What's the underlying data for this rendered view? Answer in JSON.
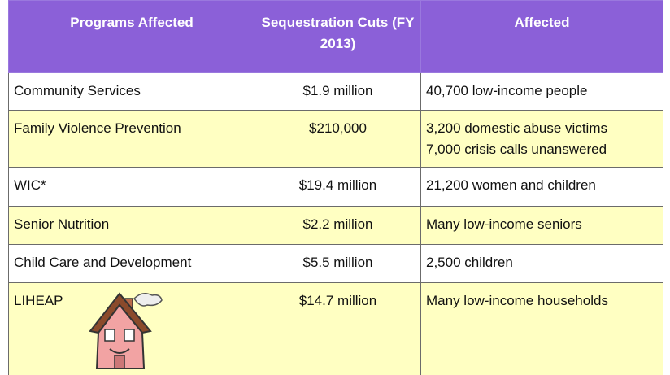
{
  "table": {
    "header": [
      "Programs Affected",
      "Sequestration Cuts (FY 2013)",
      "Affected"
    ],
    "rows": [
      [
        "Community Services",
        "$1.9 million",
        [
          "40,700 low-income people"
        ]
      ],
      [
        "Family Violence Prevention",
        "$210,000",
        [
          "3,200 domestic abuse victims",
          "7,000 crisis calls unanswered"
        ]
      ],
      [
        "WIC*",
        "$19.4 million",
        [
          "21,200 women and children"
        ]
      ],
      [
        "Senior Nutrition",
        "$2.2 million",
        [
          "Many low-income seniors"
        ]
      ],
      [
        "Child Care and Development",
        "$5.5 million",
        [
          "2,500 children"
        ]
      ],
      [
        "LIHEAP",
        "$14.7 million",
        [
          "Many low-income households"
        ]
      ]
    ]
  }
}
